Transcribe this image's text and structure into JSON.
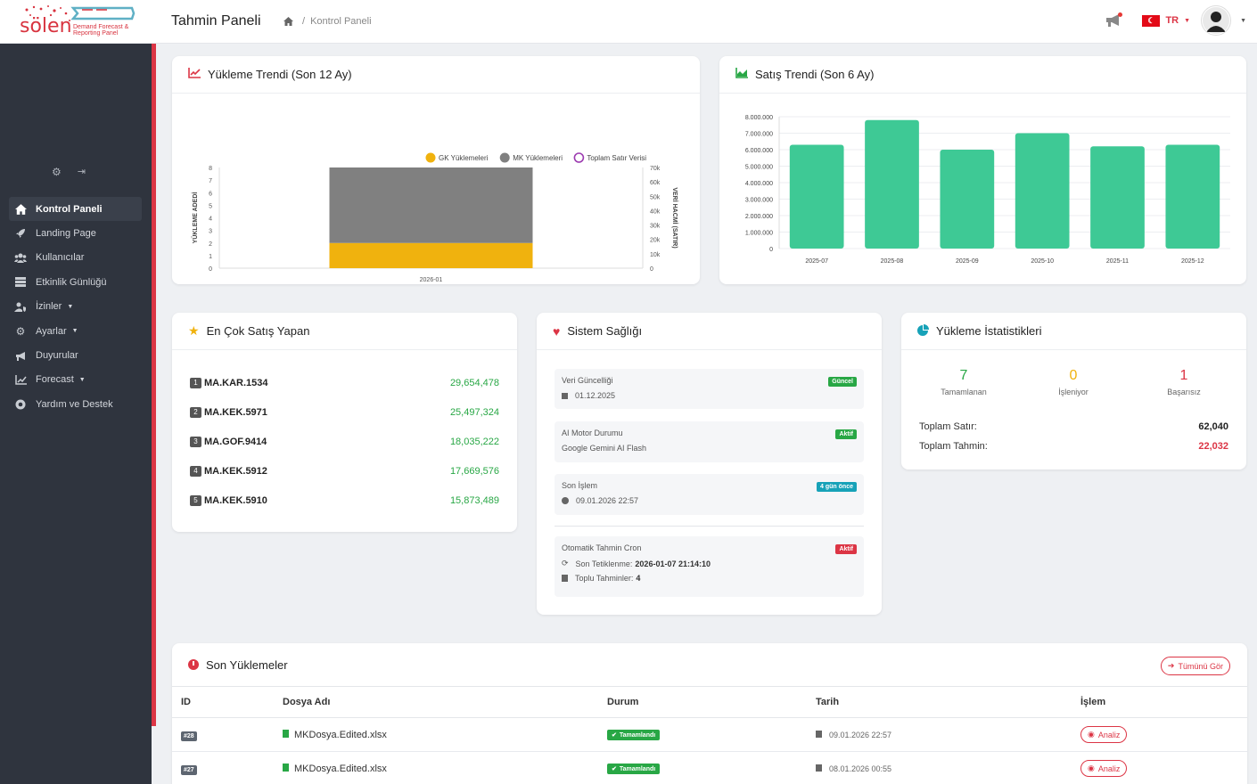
{
  "header": {
    "title": "Tahmin Paneli",
    "breadcrumb": "Kontrol Paneli",
    "lang": "TR",
    "logo_text": "sölen",
    "logo_sub1": "Demand Forecast &",
    "logo_sub2": "Reporting Panel"
  },
  "sidebar": {
    "items": [
      {
        "label": "Kontrol Paneli",
        "icon": "home-icon"
      },
      {
        "label": "Landing Page",
        "icon": "rocket-icon"
      },
      {
        "label": "Kullanıcılar",
        "icon": "users-icon"
      },
      {
        "label": "Etkinlik Günlüğü",
        "icon": "list-icon"
      },
      {
        "label": "İzinler",
        "icon": "user-shield-icon"
      },
      {
        "label": "Ayarlar",
        "icon": "cogs-icon"
      },
      {
        "label": "Duyurular",
        "icon": "megaphone-icon"
      },
      {
        "label": "Forecast",
        "icon": "chart-icon"
      },
      {
        "label": "Yardım ve Destek",
        "icon": "help-icon"
      }
    ]
  },
  "upload_trend": {
    "title": "Yükleme Trendi (Son 12 Ay)"
  },
  "sales_trend": {
    "title": "Satış Trendi (Son 6 Ay)"
  },
  "chart_data": [
    {
      "type": "bar",
      "title": "Yükleme Trendi (Son 12 Ay)",
      "categories": [
        "2026-01"
      ],
      "series": [
        {
          "name": "GK Yüklemeleri",
          "values": [
            2
          ],
          "color": "#f0b20e",
          "stack": true
        },
        {
          "name": "MK Yüklemeleri",
          "values": [
            6
          ],
          "color": "#808080",
          "stack": true
        },
        {
          "name": "Toplam Satır Verisi",
          "values": [
            null
          ],
          "color": "#9c3bb0",
          "axis": "right"
        }
      ],
      "ylabel": "YÜKLEME ADEDİ",
      "y2label": "VERİ HACMİ (SATIR)",
      "ylim": [
        0,
        8
      ],
      "y2lim": [
        0,
        70000
      ],
      "yticks": [
        "0",
        "1",
        "2",
        "3",
        "4",
        "5",
        "6",
        "7",
        "8"
      ],
      "y2ticks": [
        "0",
        "10k",
        "20k",
        "30k",
        "40k",
        "50k",
        "60k",
        "70k"
      ],
      "legend": "top-right"
    },
    {
      "type": "bar",
      "title": "Satış Trendi (Son 6 Ay)",
      "categories": [
        "2025-07",
        "2025-08",
        "2025-09",
        "2025-10",
        "2025-11",
        "2025-12"
      ],
      "values": [
        6300000,
        7800000,
        6000000,
        7000000,
        6200000,
        6300000
      ],
      "color": "#3ec995",
      "ylim": [
        0,
        8000000
      ],
      "yticks": [
        "0",
        "1.000.000",
        "2.000.000",
        "3.000.000",
        "4.000.000",
        "5.000.000",
        "6.000.000",
        "7.000.000",
        "8.000.000"
      ]
    }
  ],
  "top_sellers": {
    "title": "En Çok Satış Yapan",
    "items": [
      {
        "rank": "1",
        "name": "MA.KAR.1534",
        "value": "29,654,478"
      },
      {
        "rank": "2",
        "name": "MA.KEK.5971",
        "value": "25,497,324"
      },
      {
        "rank": "3",
        "name": "MA.GOF.9414",
        "value": "18,035,222"
      },
      {
        "rank": "4",
        "name": "MA.KEK.5912",
        "value": "17,669,576"
      },
      {
        "rank": "5",
        "name": "MA.KEK.5910",
        "value": "15,873,489"
      }
    ]
  },
  "health": {
    "title": "Sistem Sağlığı",
    "data_update": {
      "label": "Veri Güncelliği",
      "value": "01.12.2025",
      "badge": "Güncel"
    },
    "ai": {
      "label": "AI Motor Durumu",
      "value": "Google Gemini AI Flash",
      "badge": "Aktif"
    },
    "last_op": {
      "label": "Son İşlem",
      "value": "09.01.2026 22:57",
      "badge": "4 gün önce"
    },
    "cron": {
      "label": "Otomatik Tahmin Cron",
      "badge": "Aktif",
      "trigger_label": "Son Tetiklenme:",
      "trigger_value": "2026-01-07 21:14:10",
      "bulk_label": "Toplu Tahminler:",
      "bulk_value": "4"
    }
  },
  "upload_stats": {
    "title": "Yükleme İstatistikleri",
    "completed": {
      "value": "7",
      "label": "Tamamlanan"
    },
    "processing": {
      "value": "0",
      "label": "İşleniyor"
    },
    "failed": {
      "value": "1",
      "label": "Başarısız"
    },
    "total_rows_label": "Toplam Satır:",
    "total_rows": "62,040",
    "total_forecast_label": "Toplam Tahmin:",
    "total_forecast": "22,032"
  },
  "recent": {
    "title": "Son Yüklemeler",
    "see_all": "Tümünü Gör",
    "columns": [
      "ID",
      "Dosya Adı",
      "Durum",
      "Tarih",
      "İşlem"
    ],
    "rows": [
      {
        "id": "#28",
        "file": "MKDosya.Edited.xlsx",
        "status": "Tamamlandı",
        "date": "09.01.2026 22:57",
        "action": "Analiz"
      },
      {
        "id": "#27",
        "file": "MKDosya.Edited.xlsx",
        "status": "Tamamlandı",
        "date": "08.01.2026 00:55",
        "action": "Analiz"
      }
    ]
  }
}
